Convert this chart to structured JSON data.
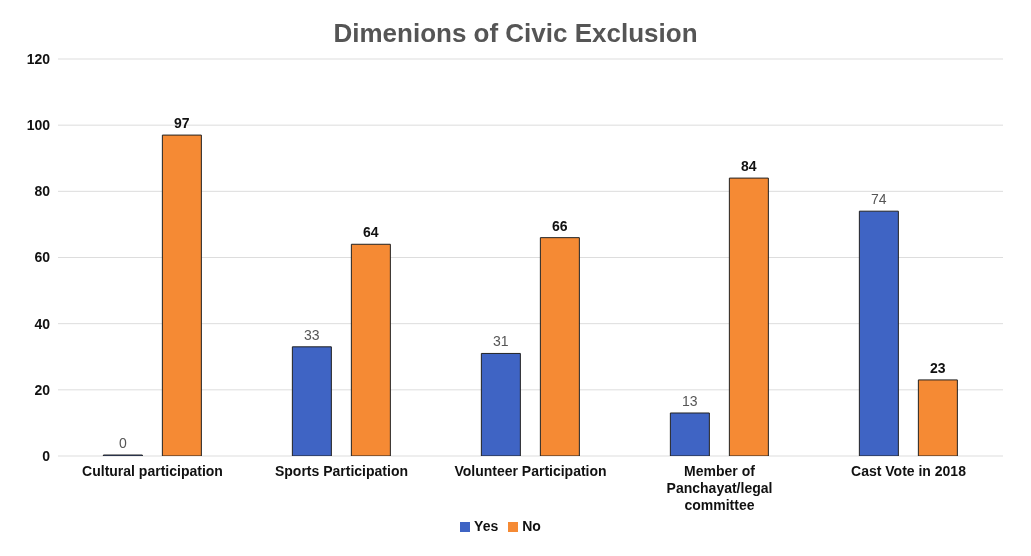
{
  "chart_data": {
    "type": "bar",
    "title": "Dimenions of Civic Exclusion",
    "categories": [
      "Cultural participation",
      "Sports Participation",
      "Volunteer Participation",
      "Member of Panchayat/legal committee",
      "Cast Vote in 2018"
    ],
    "series": [
      {
        "name": "Yes",
        "color": "#3f64c4",
        "values": [
          0,
          33,
          31,
          13,
          74
        ]
      },
      {
        "name": "No",
        "color": "#f58a34",
        "values": [
          97,
          64,
          66,
          84,
          23
        ]
      }
    ],
    "ylim": [
      0,
      120
    ],
    "yticks": [
      0,
      20,
      40,
      60,
      80,
      100,
      120
    ],
    "grid": "y",
    "legend": "bottom",
    "data_labels": true
  }
}
